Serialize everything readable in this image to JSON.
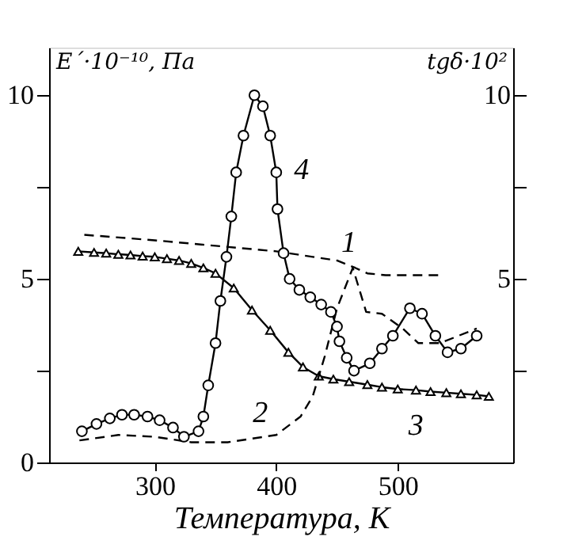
{
  "chart_data": {
    "type": "line",
    "xlabel": "Температура, К",
    "ylabel": "E´·10⁻¹⁰, Па",
    "y2label": "tgδ·10²",
    "xlim": [
      213,
      595
    ],
    "xticks": [
      300,
      400,
      500
    ],
    "ylim": [
      0,
      11.3
    ],
    "yticks": [
      0,
      {
        "value": 2.5,
        "label": null
      },
      5,
      {
        "value": 7.5,
        "label": null
      },
      10
    ],
    "y2lim": [
      0,
      11.3
    ],
    "y2ticks": [
      {
        "value": 2.5,
        "label": null
      },
      5,
      {
        "value": 7.5,
        "label": null
      },
      10
    ],
    "grid": false,
    "legend": false,
    "series": [
      {
        "name": "1",
        "color": "#000000",
        "line_style": "dashed",
        "marker": "none",
        "x": [
          242,
          300,
          350,
          400,
          430,
          450,
          465,
          475,
          490,
          535
        ],
        "values": [
          6.2,
          6.05,
          5.9,
          5.75,
          5.6,
          5.5,
          5.3,
          5.15,
          5.1,
          5.1
        ]
      },
      {
        "name": "2",
        "color": "#000000",
        "line_style": "dashed",
        "marker": "none",
        "axis": "y2",
        "x": [
          238,
          270,
          300,
          330,
          360,
          400,
          420,
          430,
          440,
          450,
          463,
          474,
          487,
          504,
          517,
          535,
          565
        ],
        "values": [
          0.6,
          0.75,
          0.7,
          0.55,
          0.55,
          0.75,
          1.25,
          1.8,
          2.9,
          4.2,
          5.3,
          4.1,
          4.05,
          3.65,
          3.25,
          3.25,
          3.65
        ]
      },
      {
        "name": "3",
        "color": "#000000",
        "line_style": "solid",
        "marker": "triangle",
        "x": [
          237,
          250,
          260,
          270,
          280,
          290,
          300,
          310,
          320,
          330,
          340,
          350,
          365,
          380,
          395,
          410,
          422,
          435,
          447,
          460,
          475,
          487,
          500,
          515,
          527,
          540,
          552,
          565,
          575
        ],
        "values": [
          5.75,
          5.72,
          5.7,
          5.67,
          5.65,
          5.62,
          5.6,
          5.55,
          5.5,
          5.42,
          5.3,
          5.15,
          4.75,
          4.15,
          3.6,
          3.0,
          2.6,
          2.35,
          2.27,
          2.2,
          2.12,
          2.05,
          2.0,
          1.97,
          1.93,
          1.9,
          1.87,
          1.84,
          1.8
        ]
      },
      {
        "name": "4",
        "color": "#000000",
        "line_style": "solid",
        "marker": "circle",
        "axis": "y2",
        "x": [
          240,
          252,
          263,
          273,
          283,
          294,
          304,
          315,
          324,
          336,
          340,
          344,
          350,
          354,
          359,
          363,
          367,
          373,
          382,
          389,
          395,
          400,
          401,
          406,
          411,
          419,
          428,
          437,
          445,
          450,
          452,
          458,
          464,
          477,
          487,
          496,
          510,
          520,
          531,
          541,
          552,
          565
        ],
        "values": [
          0.85,
          1.05,
          1.2,
          1.3,
          1.3,
          1.25,
          1.15,
          0.95,
          0.7,
          0.85,
          1.25,
          2.1,
          3.25,
          4.4,
          5.6,
          6.7,
          7.9,
          8.9,
          10.0,
          9.7,
          8.9,
          7.9,
          6.9,
          5.7,
          5.0,
          4.7,
          4.5,
          4.3,
          4.1,
          3.7,
          3.3,
          2.85,
          2.5,
          2.7,
          3.1,
          3.45,
          4.2,
          4.05,
          3.45,
          3.0,
          3.1,
          3.45
        ]
      }
    ]
  }
}
